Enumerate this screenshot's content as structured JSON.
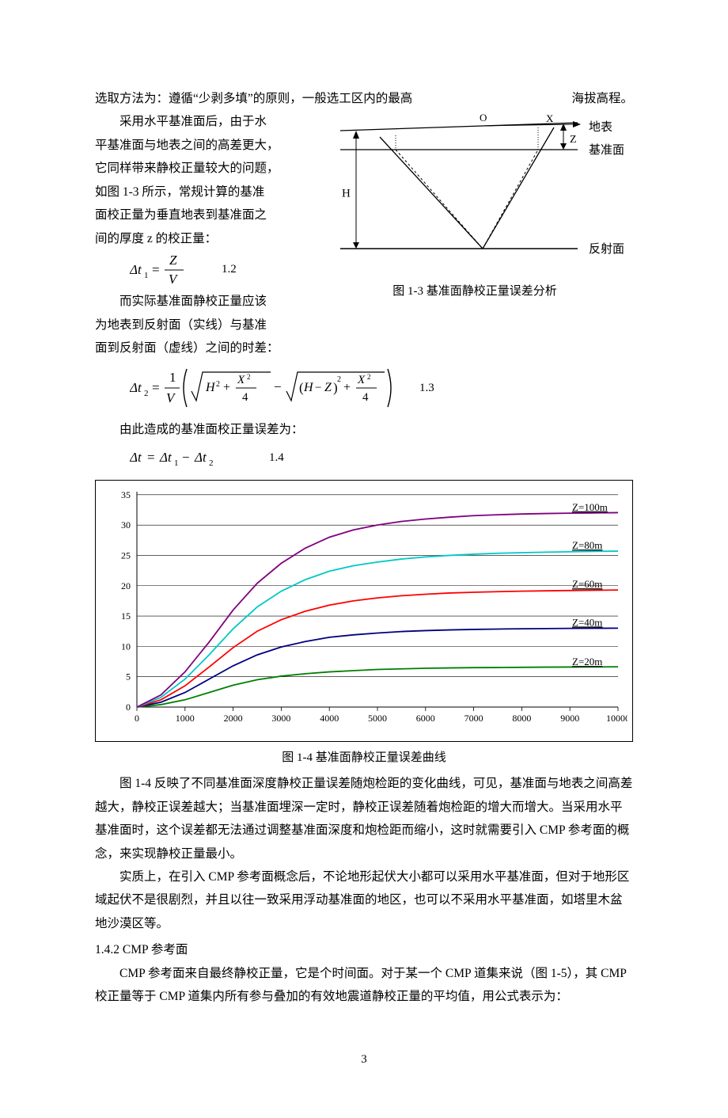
{
  "intro_line": {
    "left": "选取方法为：遵循“少剥多填”的原则，一般选工区内的最高",
    "right": "海拔高程。"
  },
  "para1_lines": [
    "采用水平基准面后，由于水",
    "平基准面与地表之间的高差更大，",
    "它同样带来静校正量较大的问题，",
    "如图 1-3 所示，常规计算的基准",
    "面校正量为垂直地表到基准面之",
    "间的厚度 z 的校正量："
  ],
  "eq1": {
    "math": "Δt₁ = Z / V",
    "num": "1.2"
  },
  "para2_lines": [
    "而实际基准面静校正量应该",
    "为地表到反射面（实线）与基准",
    "面到反射面（虚线）之间的时差："
  ],
  "eq2": {
    "num": "1.3"
  },
  "para3": "由此造成的基准面校正量误差为：",
  "eq3": {
    "math": "Δt = Δt₁ − Δt₂",
    "num": "1.4"
  },
  "fig13": {
    "caption": "图 1-3  基准面静校正量误差分析",
    "labels": {
      "O": "O",
      "X": "X",
      "H": "H",
      "Z": "Z",
      "surface": "地表",
      "datum": "基准面",
      "reflector": "反射面"
    },
    "stroke": "#000000"
  },
  "chart": {
    "caption": "图 1-4  基准面静校正量误差曲线",
    "type": "line",
    "background_color": "#ffffff",
    "border_color": "#000000",
    "axis_color": "#000000",
    "grid_color": "#000000",
    "axis_fontsize": 12,
    "xlim": [
      0,
      10000
    ],
    "ylim": [
      0,
      35.5
    ],
    "xtick_step": 1000,
    "ytick_step": 5,
    "line_width": 1.8,
    "series": [
      {
        "name": "Z=20m",
        "color": "#008000",
        "label_y": 6.5,
        "y": [
          0,
          0.4,
          1.2,
          2.4,
          3.6,
          4.5,
          5.1,
          5.5,
          5.8,
          6.0,
          6.2,
          6.3,
          6.4,
          6.45,
          6.5,
          6.52,
          6.55,
          6.58,
          6.6,
          6.62,
          6.64
        ]
      },
      {
        "name": "Z=40m",
        "color": "#000080",
        "label_y": 13,
        "y": [
          0,
          0.8,
          2.4,
          4.6,
          6.8,
          8.6,
          9.9,
          10.8,
          11.5,
          11.9,
          12.2,
          12.45,
          12.6,
          12.72,
          12.8,
          12.86,
          12.9,
          12.94,
          12.97,
          12.99,
          13.0
        ]
      },
      {
        "name": "Z=60m",
        "color": "#ff0000",
        "label_y": 19.3,
        "y": [
          0,
          1.2,
          3.5,
          6.6,
          9.8,
          12.5,
          14.4,
          15.8,
          16.8,
          17.5,
          18.0,
          18.35,
          18.6,
          18.8,
          18.92,
          19.02,
          19.1,
          19.16,
          19.21,
          19.25,
          19.3
        ]
      },
      {
        "name": "Z=80m",
        "color": "#00c8c8",
        "label_y": 25.7,
        "y": [
          0,
          1.6,
          4.6,
          8.6,
          12.9,
          16.5,
          19.1,
          21.0,
          22.4,
          23.3,
          23.9,
          24.4,
          24.75,
          25.0,
          25.2,
          25.35,
          25.45,
          25.53,
          25.6,
          25.66,
          25.7
        ]
      },
      {
        "name": "Z=100m",
        "color": "#800080",
        "label_y": 32,
        "y": [
          0,
          2.0,
          5.8,
          10.7,
          16.0,
          20.4,
          23.7,
          26.2,
          28.0,
          29.2,
          30.0,
          30.6,
          31.0,
          31.3,
          31.55,
          31.7,
          31.82,
          31.9,
          31.96,
          32.0,
          32.05
        ]
      }
    ],
    "x_values": [
      0,
      500,
      1000,
      1500,
      2000,
      2500,
      3000,
      3500,
      4000,
      4500,
      5000,
      5500,
      6000,
      6500,
      7000,
      7500,
      8000,
      8500,
      9000,
      9500,
      10000
    ]
  },
  "para4": "图 1-4 反映了不同基准面深度静校正量误差随炮检距的变化曲线，可见，基准面与地表之间高差越大，静校正误差越大；当基准面埋深一定时，静校正误差随着炮检距的增大而增大。当采用水平基准面时，这个误差都无法通过调整基准面深度和炮检距而缩小，这时就需要引入 CMP 参考面的概念，来实现静校正量最小。",
  "para5": "实质上，在引入 CMP 参考面概念后，不论地形起伏大小都可以采用水平基准面，但对于地形区域起伏不是很剧烈，并且以往一致采用浮动基准面的地区，也可以不采用水平基准面，如塔里木盆地沙漠区等。",
  "sec_head": "1.4.2 CMP 参考面",
  "para6": "CMP 参考面来自最终静校正量，它是个时间面。对于某一个 CMP 道集来说（图 1-5），其 CMP 校正量等于 CMP 道集内所有参与叠加的有效地震道静校正量的平均值，用公式表示为：",
  "page_number": "3"
}
